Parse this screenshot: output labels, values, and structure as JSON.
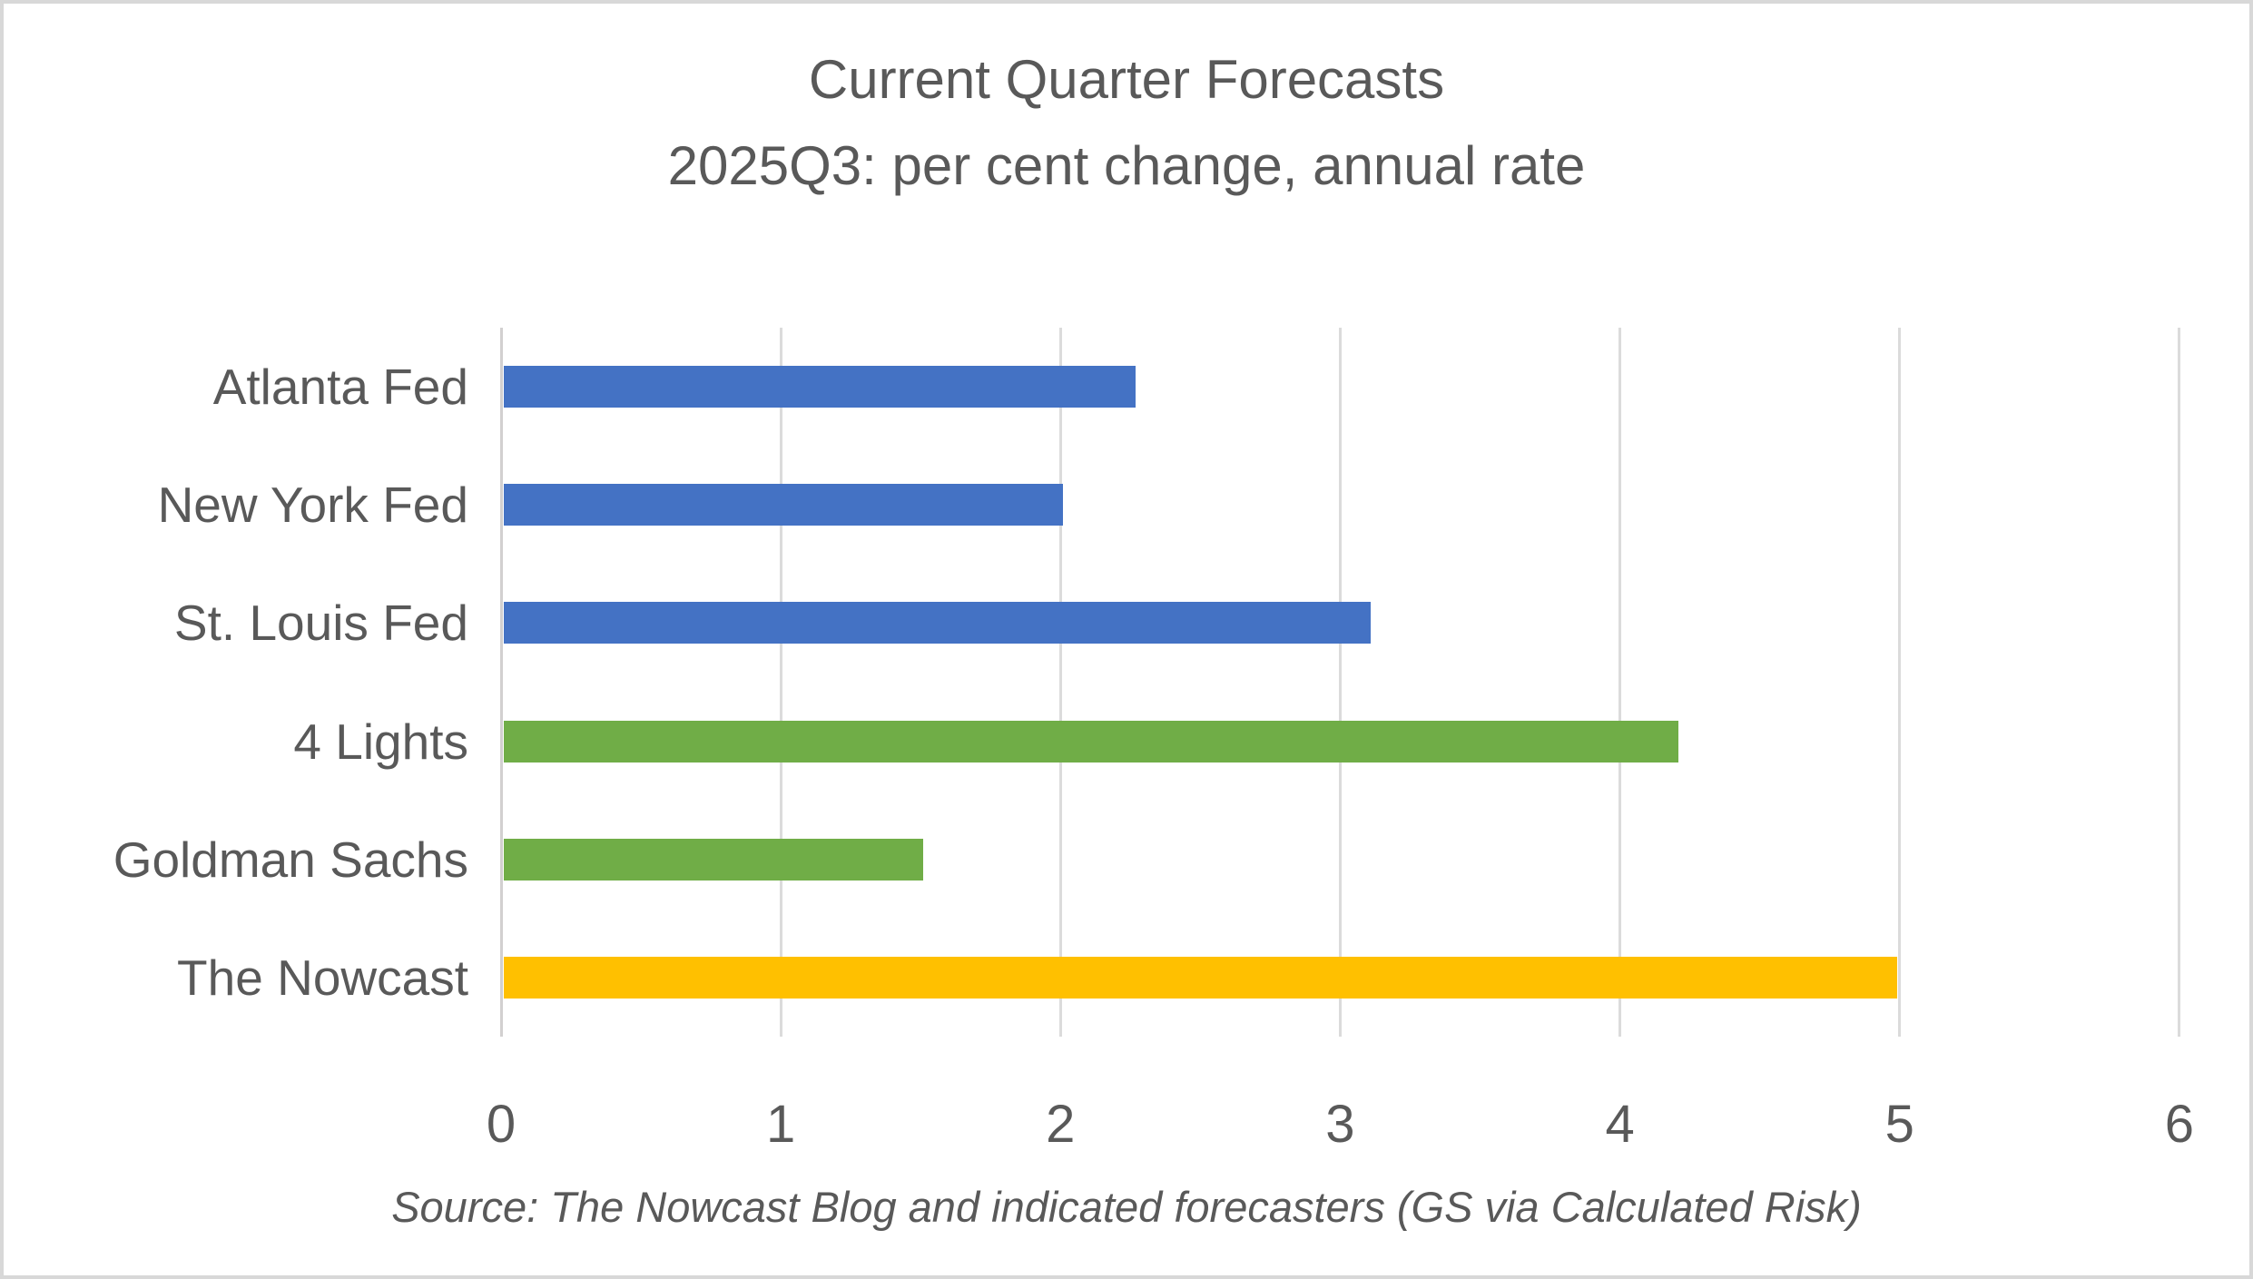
{
  "chart_data": {
    "type": "bar",
    "orientation": "horizontal",
    "title": "Current Quarter Forecasts",
    "subtitle": "2025Q3: per cent change, annual rate",
    "categories": [
      "Atlanta Fed",
      "New York Fed",
      "St. Louis Fed",
      "4 Lights",
      "Goldman Sachs",
      "The Nowcast"
    ],
    "values": [
      2.26,
      2.0,
      3.1,
      4.2,
      1.5,
      4.98
    ],
    "bar_colors": [
      "#4472C4",
      "#4472C4",
      "#4472C4",
      "#70AD47",
      "#70AD47",
      "#FFC000"
    ],
    "xlim": [
      0,
      6
    ],
    "x_ticks": [
      0,
      1,
      2,
      3,
      4,
      5,
      6
    ],
    "grid": "vertical-gridlines-on",
    "legend": "none",
    "source_note": "Source: The Nowcast Blog and indicated forecasters (GS via Calculated Risk)"
  },
  "colors": {
    "text": "#595959",
    "gridline": "#DBDBDB",
    "axis_line": "#D2D0D0",
    "background": "#FFFFFF",
    "border": "#D8D8D8",
    "fed_blue": "#4472C4",
    "private_green": "#70AD47",
    "nowcast_gold": "#FFC000"
  }
}
